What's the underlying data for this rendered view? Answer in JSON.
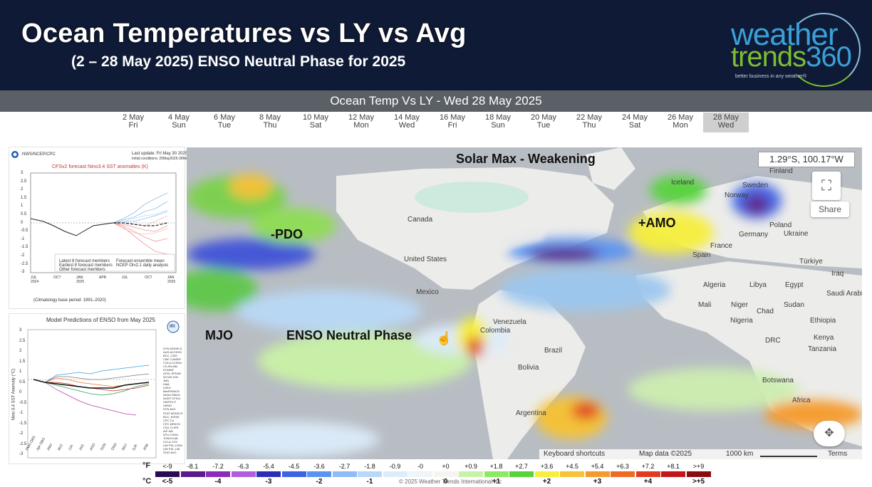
{
  "header": {
    "title": "Ocean Temperatures vs LY vs Avg",
    "subtitle": "(2 – 28 May 2025)  ENSO Neutral Phase for 2025",
    "logo_line1": "weather",
    "logo_line2a": "trends",
    "logo_line2b": "360",
    "logo_tagline": "better business in any weather®"
  },
  "toolbar": {
    "title": "Ocean Temp Vs LY - Wed 28 May 2025"
  },
  "dates": [
    {
      "date": "2 May",
      "day": "Fri",
      "active": false
    },
    {
      "date": "4 May",
      "day": "Sun",
      "active": false
    },
    {
      "date": "6 May",
      "day": "Tue",
      "active": false
    },
    {
      "date": "8 May",
      "day": "Thu",
      "active": false
    },
    {
      "date": "10 May",
      "day": "Sat",
      "active": false
    },
    {
      "date": "12 May",
      "day": "Mon",
      "active": false
    },
    {
      "date": "14 May",
      "day": "Wed",
      "active": false
    },
    {
      "date": "16 May",
      "day": "Fri",
      "active": false
    },
    {
      "date": "18 May",
      "day": "Sun",
      "active": false
    },
    {
      "date": "20 May",
      "day": "Tue",
      "active": false
    },
    {
      "date": "22 May",
      "day": "Thu",
      "active": false
    },
    {
      "date": "24 May",
      "day": "Sat",
      "active": false
    },
    {
      "date": "26 May",
      "day": "Mon",
      "active": false
    },
    {
      "date": "28 May",
      "day": "Wed",
      "active": true
    }
  ],
  "chart1": {
    "agency": "NWS/NCEP/CPC",
    "updated": "Last update: Fri May 30 2025",
    "initial": "Initial conditions: 20May2025-28May2025",
    "title": "CFSv2 forecast Nino3.4 SST anomalies (K)",
    "yticks": [
      "3",
      "2.5",
      "2",
      "1.5",
      "1",
      "0.5",
      "0",
      "-0.5",
      "-1",
      "-1.5",
      "-2",
      "-2.5",
      "-3"
    ],
    "xticks": [
      "JUL\n2024",
      "OCT",
      "JAN\n2025",
      "APR",
      "JUL",
      "OCT",
      "JAN\n2026"
    ],
    "legend": [
      "Latest 8 forecast members",
      "Earliest 8 forecast members",
      "Other forecast members",
      "Forecast ensemble mean",
      "NCEP OIv2.1 daily analysis"
    ],
    "base": "(Climatology base period: 1991–2020)"
  },
  "chart2": {
    "title": "Model Predictions of ENSO from May 2025",
    "ylabel": "Nino 3.4 SST Anomaly (°C)",
    "yticks": [
      "3",
      "2.5",
      "2",
      "1.5",
      "1",
      "0.5",
      "0",
      "-0.5",
      "-1",
      "-1.5",
      "-2",
      "-2.5",
      "-3"
    ],
    "xticks": [
      "FMA-OBS",
      "Apr OBS",
      "AMJ",
      "MJJ",
      "JJA",
      "JAS",
      "ASO",
      "SON",
      "OND",
      "NDJ",
      "DJF",
      "JFM"
    ],
    "dyn_header": "DYN MODELS",
    "dyn_models": [
      "AUS-ACCESS",
      "BCC_CSM",
      "CMC CANSIP",
      "COLA CCSM4",
      "CS-IRI-MM",
      "ECMWF",
      "GFDL SPEAR",
      "IOCAS ICM",
      "JMA",
      "KMA",
      "LDEO",
      "MetFRANCE",
      "NASA GMAO",
      "NCEP CFSv2",
      "SINTEX-F",
      "UKMO",
      "DYN AVG"
    ],
    "stat_header": "STAT MODELS",
    "stat_models": [
      "BCC_RZDM",
      "CPC CA",
      "CPC MRKOV",
      "CSU CLIPR",
      "IAP-NN",
      "NTU CODA",
      "TONGJI-ML",
      "UCLA-TCD",
      "UW PSL-CSIM",
      "UW PSL-LIM",
      "STAT AVG"
    ],
    "logo": "IRI"
  },
  "map": {
    "coords": "1.29°S, 100.17°W",
    "labels": {
      "solar": "Solar Max - Weakening",
      "pdo": "-PDO",
      "amo": "+AMO",
      "mjo": "MJO",
      "enso": "ENSO Neutral Phase"
    },
    "countries": [
      "Canada",
      "United States",
      "Mexico",
      "Venezuela",
      "Colombia",
      "Brazil",
      "Bolivia",
      "Argentina",
      "Finland",
      "Sweden",
      "Norway",
      "Iceland",
      "Poland",
      "Germany",
      "Ukraine",
      "France",
      "Spain",
      "Türkiye",
      "Iraq",
      "Algeria",
      "Libya",
      "Egypt",
      "Saudi Arabia",
      "Mali",
      "Niger",
      "Chad",
      "Sudan",
      "Nigeria",
      "Ethiopia",
      "Kenya",
      "DRC",
      "Tanzania",
      "Botswana",
      "Africa"
    ],
    "share": "Share",
    "fullscreen_icon": "fullscreen-icon",
    "pan_icon": "pan-control-icon",
    "footer": {
      "shortcuts": "Keyboard shortcuts",
      "mapdata": "Map data ©2025",
      "scale": "1000 km",
      "terms": "Terms"
    }
  },
  "legend": {
    "f_label": "°F",
    "c_label": "°C",
    "f_values": [
      "<-9",
      "-8.1",
      "-7.2",
      "-6.3",
      "-5.4",
      "-4.5",
      "-3.6",
      "-2.7",
      "-1.8",
      "-0.9",
      "-0",
      "+0",
      "+0.9",
      "+1.8",
      "+2.7",
      "+3.6",
      "+4.5",
      "+5.4",
      "+6.3",
      "+7.2",
      "+8.1",
      ">+9"
    ],
    "c_values": [
      "<-5",
      "",
      "-4",
      "",
      "-3",
      "",
      "-2",
      "",
      "-1",
      "",
      "",
      "0",
      "",
      "+1",
      "",
      "+2",
      "",
      "+3",
      "",
      "+4",
      "",
      ">+5"
    ],
    "colors": [
      "#2b0a55",
      "#5a1a8a",
      "#8a2bbd",
      "#b25de0",
      "#2b2fb8",
      "#3c63e6",
      "#5a93f2",
      "#8fbcf7",
      "#b7d8f8",
      "#dcecfa",
      "#eef5fb",
      "#f5f5ef",
      "#c8f2a8",
      "#8ee865",
      "#57d43b",
      "#f6ef3c",
      "#f7c233",
      "#f59a2c",
      "#f06a24",
      "#e33b1f",
      "#c4141c",
      "#8c0b12"
    ],
    "copyright": "© 2025 Weather Trends International Inc"
  },
  "colors": {
    "header_bg": "#0f1b36",
    "bar_bg": "#5b6066",
    "brand_blue": "#3aa0d8",
    "brand_green": "#7ebd31"
  }
}
